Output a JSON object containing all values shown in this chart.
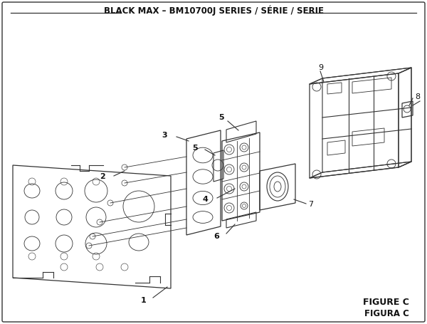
{
  "title": "BLACK MAX – BM10700J SERIES / SÉRIE / SERIE",
  "figure_label": "FIGURE C",
  "figure_label2": "FIGURA C",
  "bg_color": "#ffffff",
  "border_color": "#333333",
  "line_color": "#333333",
  "title_fontsize": 8.5,
  "label_fontsize": 7.5,
  "figure_label_fontsize": 9.0
}
